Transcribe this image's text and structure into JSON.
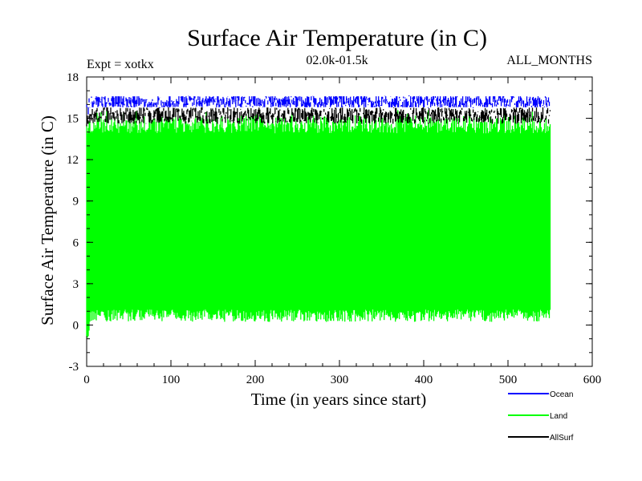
{
  "chart_data": {
    "type": "line",
    "title": "Surface Air Temperature (in C)",
    "subtitle_left": "Expt = xotkx",
    "subtitle_center": "02.0k-01.5k",
    "subtitle_right": "ALL_MONTHS",
    "xlabel": "Time (in years since start)",
    "ylabel": "Surface Air Temperature (in C)",
    "xlim": [
      0,
      600
    ],
    "ylim": [
      -3,
      18
    ],
    "x_ticks": [
      "0",
      "100",
      "200",
      "300",
      "400",
      "500",
      "600"
    ],
    "y_ticks": [
      "-3",
      "0",
      "3",
      "6",
      "9",
      "12",
      "15",
      "18"
    ],
    "x_range_data": [
      0,
      550
    ],
    "series": [
      {
        "name": "Ocean",
        "color": "#0000ff",
        "min": 15.8,
        "max": 16.6,
        "mean": 16.2
      },
      {
        "name": "Land",
        "color": "#00ff00",
        "min": 0.5,
        "max": 15.2,
        "mean": 8.0
      },
      {
        "name": "AllSurf",
        "color": "#000000",
        "min": 14.6,
        "max": 15.8,
        "mean": 15.2
      }
    ]
  }
}
